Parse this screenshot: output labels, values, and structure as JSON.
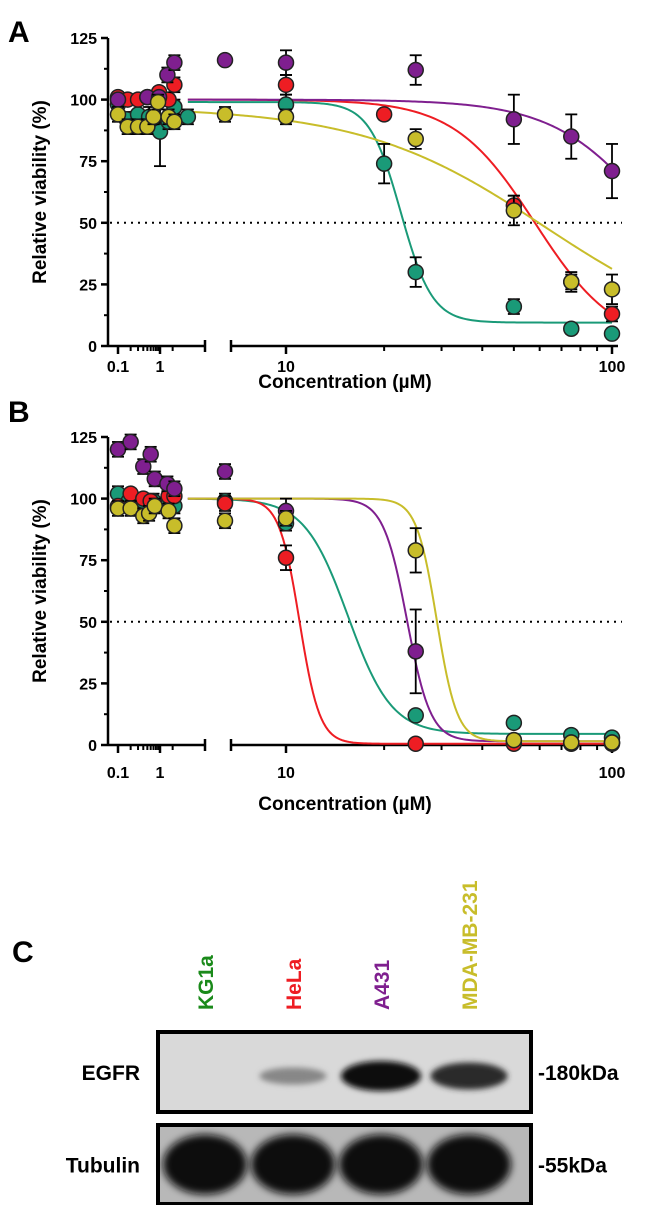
{
  "panels": {
    "a": "A",
    "b": "B",
    "c": "C"
  },
  "series_colors": {
    "KG1a": "#1a9a78",
    "HeLa": "#ee1d23",
    "A431": "#7f1f8f",
    "MDA-MB-231": "#c8bd2a"
  },
  "chart_data": [
    {
      "panel": "A",
      "type": "scatter",
      "xlabel": "Concentration (µM)",
      "ylabel": "Relative viability  (%)",
      "x_scale": "log",
      "x_axis_break": true,
      "xticks": [
        "0.1",
        "1",
        "10",
        "100"
      ],
      "yticks": [
        "0",
        "25",
        "50",
        "75",
        "100",
        "125"
      ],
      "ylim": [
        0,
        125
      ],
      "reference_line": 50,
      "series": [
        {
          "key": "KG1a",
          "points": [
            {
              "x": 0.1,
              "y": 98,
              "err": 3
            },
            {
              "x": 0.16,
              "y": 92,
              "err": 3
            },
            {
              "x": 0.3,
              "y": 94,
              "err": 4
            },
            {
              "x": 0.55,
              "y": 93,
              "err": 4
            },
            {
              "x": 0.85,
              "y": 89,
              "err": 3
            },
            {
              "x": 1.0,
              "y": 87,
              "err": 14
            },
            {
              "x": 1.6,
              "y": 91,
              "err": 3
            },
            {
              "x": 2.2,
              "y": 97,
              "err": 3
            },
            {
              "x": 5.0,
              "y": 93,
              "err": 3
            },
            {
              "x": 10,
              "y": 98,
              "err": 4
            },
            {
              "x": 20,
              "y": 74,
              "err": 8
            },
            {
              "x": 25,
              "y": 30,
              "err": 6
            },
            {
              "x": 50,
              "y": 16,
              "err": 3
            },
            {
              "x": 75,
              "y": 7,
              "err": 2
            },
            {
              "x": 100,
              "y": 5,
              "err": 2
            }
          ],
          "fit": {
            "top": 99,
            "bottom": 9.5,
            "ec50": 22.5,
            "hill": 9
          }
        },
        {
          "key": "HeLa",
          "points": [
            {
              "x": 0.1,
              "y": 101,
              "err": 2
            },
            {
              "x": 0.17,
              "y": 100,
              "err": 2
            },
            {
              "x": 0.3,
              "y": 100,
              "err": 2
            },
            {
              "x": 0.5,
              "y": 101,
              "err": 2
            },
            {
              "x": 0.95,
              "y": 103,
              "err": 2
            },
            {
              "x": 1.6,
              "y": 100,
              "err": 2
            },
            {
              "x": 2.2,
              "y": 106,
              "err": 3
            },
            {
              "x": 10,
              "y": 106,
              "err": 4
            },
            {
              "x": 20,
              "y": 94,
              "err": 2
            },
            {
              "x": 50,
              "y": 57,
              "err": 4
            },
            {
              "x": 75,
              "y": 26,
              "err": 3
            },
            {
              "x": 100,
              "y": 13,
              "err": 3
            }
          ],
          "fit": {
            "top": 100,
            "bottom": 0,
            "ec50": 58,
            "hill": 3.5
          }
        },
        {
          "key": "A431",
          "points": [
            {
              "x": 0.1,
              "y": 100,
              "err": 2
            },
            {
              "x": 0.5,
              "y": 101,
              "err": 2
            },
            {
              "x": 0.95,
              "y": 101,
              "err": 2
            },
            {
              "x": 1.5,
              "y": 110,
              "err": 3
            },
            {
              "x": 2.2,
              "y": 115,
              "err": 3
            },
            {
              "x": 6.5,
              "y": 116,
              "err": 2
            },
            {
              "x": 10,
              "y": 115,
              "err": 5
            },
            {
              "x": 25,
              "y": 112,
              "err": 6
            },
            {
              "x": 50,
              "y": 92,
              "err": 10
            },
            {
              "x": 75,
              "y": 85,
              "err": 9
            },
            {
              "x": 100,
              "y": 71,
              "err": 11
            }
          ],
          "fit": {
            "top": 100,
            "bottom": 0,
            "ec50": 140,
            "hill": 2.8
          }
        },
        {
          "key": "MDA-MB-231",
          "points": [
            {
              "x": 0.1,
              "y": 94,
              "err": 3
            },
            {
              "x": 0.17,
              "y": 89,
              "err": 3
            },
            {
              "x": 0.3,
              "y": 89,
              "err": 3
            },
            {
              "x": 0.5,
              "y": 89,
              "err": 3
            },
            {
              "x": 0.7,
              "y": 93,
              "err": 3
            },
            {
              "x": 0.9,
              "y": 99,
              "err": 3
            },
            {
              "x": 1.6,
              "y": 93,
              "err": 3
            },
            {
              "x": 2.2,
              "y": 91,
              "err": 3
            },
            {
              "x": 6.5,
              "y": 94,
              "err": 3
            },
            {
              "x": 10,
              "y": 93,
              "err": 3
            },
            {
              "x": 25,
              "y": 84,
              "err": 4
            },
            {
              "x": 50,
              "y": 55,
              "err": 6
            },
            {
              "x": 75,
              "y": 26,
              "err": 4
            },
            {
              "x": 100,
              "y": 23,
              "err": 6
            }
          ],
          "fit": {
            "top": 97,
            "bottom": 0,
            "ec50": 62,
            "hill": 1.55
          }
        }
      ]
    },
    {
      "panel": "B",
      "type": "scatter",
      "xlabel": "Concentration (µM)",
      "ylabel": "Relative viability  (%)",
      "x_scale": "log",
      "x_axis_break": true,
      "xticks": [
        "0.1",
        "1",
        "10",
        "100"
      ],
      "yticks": [
        "0",
        "25",
        "50",
        "75",
        "100",
        "125"
      ],
      "ylim": [
        0,
        125
      ],
      "reference_line": 50,
      "series": [
        {
          "key": "KG1a",
          "points": [
            {
              "x": 0.1,
              "y": 102,
              "err": 3
            },
            {
              "x": 0.18,
              "y": 99,
              "err": 3
            },
            {
              "x": 0.4,
              "y": 99,
              "err": 3
            },
            {
              "x": 0.7,
              "y": 99,
              "err": 3
            },
            {
              "x": 1.6,
              "y": 98,
              "err": 3
            },
            {
              "x": 2.2,
              "y": 97,
              "err": 3
            },
            {
              "x": 6.5,
              "y": 99,
              "err": 3
            },
            {
              "x": 10,
              "y": 90,
              "err": 3
            },
            {
              "x": 25,
              "y": 12,
              "err": 2
            },
            {
              "x": 50,
              "y": 9,
              "err": 2
            },
            {
              "x": 75,
              "y": 4,
              "err": 2
            },
            {
              "x": 100,
              "y": 3,
              "err": 2
            }
          ],
          "fit": {
            "top": 100,
            "bottom": 4.5,
            "ec50": 15.5,
            "hill": 6.5
          }
        },
        {
          "key": "HeLa",
          "points": [
            {
              "x": 0.1,
              "y": 97,
              "err": 2
            },
            {
              "x": 0.2,
              "y": 102,
              "err": 2
            },
            {
              "x": 0.4,
              "y": 100,
              "err": 2
            },
            {
              "x": 0.6,
              "y": 99,
              "err": 2
            },
            {
              "x": 1.6,
              "y": 101,
              "err": 2
            },
            {
              "x": 2.2,
              "y": 101,
              "err": 2
            },
            {
              "x": 6.5,
              "y": 98,
              "err": 3
            },
            {
              "x": 10,
              "y": 76,
              "err": 5
            },
            {
              "x": 25,
              "y": 0.5,
              "err": 1
            },
            {
              "x": 50,
              "y": 0.5,
              "err": 1
            },
            {
              "x": 75,
              "y": 0.5,
              "err": 1
            },
            {
              "x": 100,
              "y": 0.5,
              "err": 1
            }
          ],
          "fit": {
            "top": 100,
            "bottom": 0.5,
            "ec50": 11,
            "hill": 14
          }
        },
        {
          "key": "A431",
          "points": [
            {
              "x": 0.1,
              "y": 120,
              "err": 3
            },
            {
              "x": 0.2,
              "y": 123,
              "err": 3
            },
            {
              "x": 0.4,
              "y": 113,
              "err": 3
            },
            {
              "x": 0.6,
              "y": 118,
              "err": 3
            },
            {
              "x": 0.75,
              "y": 108,
              "err": 3
            },
            {
              "x": 1.5,
              "y": 106,
              "err": 3
            },
            {
              "x": 2.2,
              "y": 104,
              "err": 3
            },
            {
              "x": 6.5,
              "y": 111,
              "err": 3
            },
            {
              "x": 10,
              "y": 95,
              "err": 5
            },
            {
              "x": 25,
              "y": 38,
              "err": 17
            },
            {
              "x": 50,
              "y": 2,
              "err": 1
            },
            {
              "x": 75,
              "y": 1,
              "err": 1
            },
            {
              "x": 100,
              "y": 1,
              "err": 1
            }
          ],
          "fit": {
            "top": 100,
            "bottom": 1.5,
            "ec50": 23.5,
            "hill": 12
          }
        },
        {
          "key": "MDA-MB-231",
          "points": [
            {
              "x": 0.1,
              "y": 96,
              "err": 3
            },
            {
              "x": 0.2,
              "y": 96,
              "err": 3
            },
            {
              "x": 0.4,
              "y": 93,
              "err": 3
            },
            {
              "x": 0.55,
              "y": 94,
              "err": 3
            },
            {
              "x": 0.75,
              "y": 97,
              "err": 3
            },
            {
              "x": 1.6,
              "y": 95,
              "err": 3
            },
            {
              "x": 2.2,
              "y": 89,
              "err": 3
            },
            {
              "x": 6.5,
              "y": 91,
              "err": 3
            },
            {
              "x": 10,
              "y": 92,
              "err": 3
            },
            {
              "x": 25,
              "y": 79,
              "err": 9
            },
            {
              "x": 50,
              "y": 2,
              "err": 1
            },
            {
              "x": 75,
              "y": 1,
              "err": 1
            },
            {
              "x": 100,
              "y": 1,
              "err": 1
            }
          ],
          "fit": {
            "top": 100,
            "bottom": 1.5,
            "ec50": 29,
            "hill": 14
          }
        }
      ]
    }
  ],
  "blot": {
    "lanes": [
      {
        "label": "KG1a",
        "color": "#1a8a1a"
      },
      {
        "label": "HeLa",
        "color": "#ee1d23"
      },
      {
        "label": "A431",
        "color": "#7f1f8f"
      },
      {
        "label": "MDA-MB-231",
        "color": "#c8bd2a"
      }
    ],
    "rows": [
      {
        "label": "EGFR",
        "size": "-180kDa",
        "band_intensity": [
          0,
          0.35,
          1.0,
          0.85
        ]
      },
      {
        "label": "Tubulin",
        "size": "-55kDa",
        "band_intensity": [
          1.0,
          1.0,
          1.0,
          1.0
        ]
      }
    ]
  }
}
